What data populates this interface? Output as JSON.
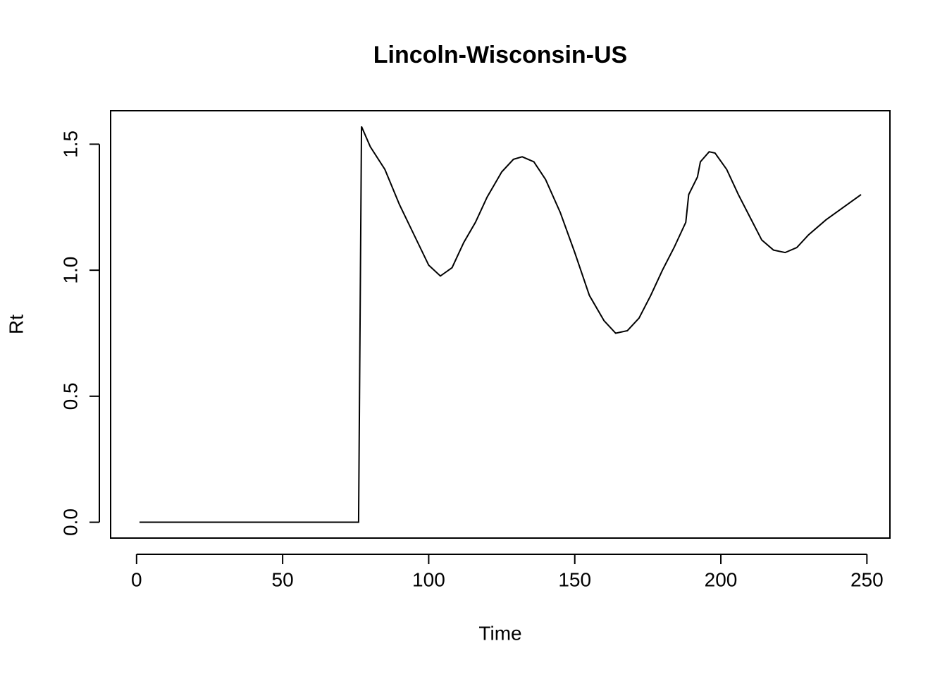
{
  "chart_data": {
    "type": "line",
    "title": "Lincoln-Wisconsin-US",
    "x_label": "Time",
    "y_label": "Rt",
    "x": [
      1,
      76,
      77,
      80,
      85,
      90,
      95,
      100,
      104,
      108,
      112,
      116,
      120,
      125,
      129,
      132,
      136,
      140,
      145,
      150,
      155,
      160,
      164,
      168,
      172,
      176,
      180,
      184,
      188,
      189,
      192,
      193,
      196,
      198,
      202,
      206,
      210,
      214,
      218,
      222,
      226,
      230,
      236,
      242,
      248
    ],
    "series": [
      {
        "name": "Rt",
        "color": "#000000",
        "values": [
          0,
          0,
          1.57,
          1.49,
          1.4,
          1.26,
          1.14,
          1.02,
          0.977,
          1.01,
          1.11,
          1.19,
          1.29,
          1.39,
          1.44,
          1.45,
          1.43,
          1.36,
          1.23,
          1.07,
          0.9,
          0.8,
          0.75,
          0.76,
          0.81,
          0.9,
          1.0,
          1.09,
          1.19,
          1.3,
          1.37,
          1.43,
          1.47,
          1.465,
          1.4,
          1.3,
          1.21,
          1.12,
          1.08,
          1.07,
          1.09,
          1.14,
          1.2,
          1.25,
          1.3
        ]
      }
    ],
    "xlim": [
      -8.88,
      257.88
    ],
    "ylim": [
      -0.0628,
      1.6328
    ],
    "xticks": [
      0,
      50,
      100,
      150,
      200,
      250
    ],
    "yticks": [
      {
        "value": 0,
        "label": "0.0"
      },
      0.5,
      {
        "value": 1,
        "label": "1.0"
      },
      1.5
    ]
  }
}
